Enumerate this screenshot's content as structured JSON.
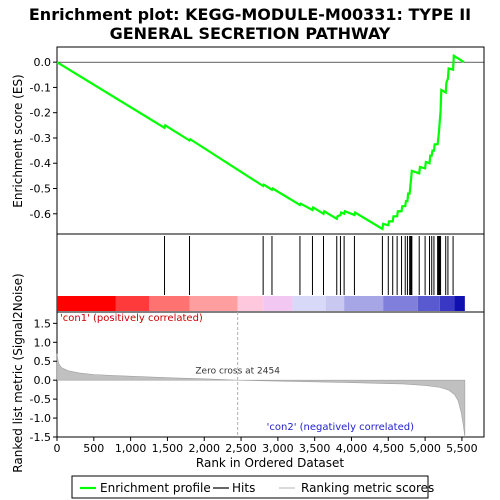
{
  "chart_data": {
    "type": "line",
    "title_line1": "Enrichment plot: KEGG-MODULE-M00331: TYPE II",
    "title_line2": "GENERAL SECRETION PATHWAY",
    "es_panel": {
      "ylabel": "Enrichment score (ES)",
      "ylim": [
        -0.68,
        0.06
      ],
      "yticks": [
        "0.0",
        "-0.1",
        "-0.2",
        "-0.3",
        "-0.4",
        "-0.5",
        "-0.6"
      ],
      "ytick_values": [
        0.0,
        -0.1,
        -0.2,
        -0.3,
        -0.4,
        -0.5,
        -0.6
      ],
      "line_color": "#00ff00",
      "es_curve": [
        [
          0,
          0.0
        ],
        [
          1460,
          -0.26
        ],
        [
          1470,
          -0.25
        ],
        [
          1800,
          -0.31
        ],
        [
          1810,
          -0.305
        ],
        [
          2800,
          -0.49
        ],
        [
          2810,
          -0.485
        ],
        [
          2920,
          -0.505
        ],
        [
          2930,
          -0.5
        ],
        [
          3300,
          -0.565
        ],
        [
          3310,
          -0.56
        ],
        [
          3470,
          -0.585
        ],
        [
          3480,
          -0.575
        ],
        [
          3620,
          -0.6
        ],
        [
          3630,
          -0.59
        ],
        [
          3800,
          -0.62
        ],
        [
          3810,
          -0.61
        ],
        [
          3850,
          -0.605
        ],
        [
          3860,
          -0.595
        ],
        [
          3900,
          -0.6
        ],
        [
          3910,
          -0.59
        ],
        [
          4040,
          -0.605
        ],
        [
          4050,
          -0.595
        ],
        [
          4420,
          -0.66
        ],
        [
          4430,
          -0.64
        ],
        [
          4500,
          -0.645
        ],
        [
          4510,
          -0.63
        ],
        [
          4560,
          -0.63
        ],
        [
          4570,
          -0.61
        ],
        [
          4620,
          -0.61
        ],
        [
          4630,
          -0.59
        ],
        [
          4680,
          -0.59
        ],
        [
          4690,
          -0.57
        ],
        [
          4730,
          -0.57
        ],
        [
          4740,
          -0.55
        ],
        [
          4760,
          -0.55
        ],
        [
          4770,
          -0.52
        ],
        [
          4790,
          -0.52
        ],
        [
          4800,
          -0.49
        ],
        [
          4810,
          -0.46
        ],
        [
          4820,
          -0.43
        ],
        [
          4920,
          -0.44
        ],
        [
          4930,
          -0.415
        ],
        [
          5000,
          -0.42
        ],
        [
          5010,
          -0.395
        ],
        [
          5060,
          -0.4
        ],
        [
          5070,
          -0.37
        ],
        [
          5090,
          -0.37
        ],
        [
          5100,
          -0.35
        ],
        [
          5120,
          -0.35
        ],
        [
          5130,
          -0.325
        ],
        [
          5170,
          -0.325
        ],
        [
          5180,
          -0.3
        ],
        [
          5190,
          -0.27
        ],
        [
          5200,
          -0.23
        ],
        [
          5210,
          -0.195
        ],
        [
          5220,
          -0.11
        ],
        [
          5280,
          -0.12
        ],
        [
          5290,
          -0.08
        ],
        [
          5310,
          -0.065
        ],
        [
          5320,
          -0.025
        ],
        [
          5380,
          -0.03
        ],
        [
          5390,
          0.025
        ],
        [
          5530,
          0.0
        ]
      ]
    },
    "hits_panel": {
      "hit_ranks": [
        1460,
        1800,
        2800,
        2920,
        3300,
        3470,
        3620,
        3800,
        3850,
        3900,
        4040,
        4420,
        4500,
        4560,
        4620,
        4680,
        4730,
        4760,
        4790,
        4800,
        4810,
        4820,
        4920,
        5000,
        5060,
        5090,
        5120,
        5170,
        5180,
        5190,
        5200,
        5210,
        5280,
        5310,
        5380
      ],
      "gradient_colors": [
        "#ff0000",
        "#ff3a3a",
        "#ff7272",
        "#ff9e9e",
        "#ffc8dc",
        "#f2c8f2",
        "#d8d8f8",
        "#c8c8f0",
        "#a6a6e6",
        "#8080dc",
        "#5a5ad0",
        "#3838c4",
        "#1010b0"
      ]
    },
    "metric_panel": {
      "ylabel": "Ranked list metric (Signal2Noise)",
      "xlabel": "Rank in Ordered Dataset",
      "ylim": [
        -1.5,
        1.8
      ],
      "yticks": [
        "1.5",
        "1.0",
        "0.5",
        "0.0",
        "-0.5",
        "-1.0",
        "-1.5"
      ],
      "ytick_values": [
        1.5,
        1.0,
        0.5,
        0.0,
        -0.5,
        -1.0,
        -1.5
      ],
      "xlim": [
        0,
        5800
      ],
      "xticks": [
        "0",
        "500",
        "1,000",
        "1,500",
        "2,000",
        "2,500",
        "3,000",
        "3,500",
        "4,000",
        "4,500",
        "5,000",
        "5,500"
      ],
      "xtick_values": [
        0,
        500,
        1000,
        1500,
        2000,
        2500,
        3000,
        3500,
        4000,
        4500,
        5000,
        5500
      ],
      "zero_cross": 2454,
      "zero_cross_label": "Zero cross at 2454",
      "pos_label": "'con1' (positively correlated)",
      "neg_label": "'con2' (negatively correlated)",
      "n_genes": 5540,
      "metric_curve": [
        [
          0,
          0.7
        ],
        [
          20,
          0.45
        ],
        [
          60,
          0.33
        ],
        [
          150,
          0.25
        ],
        [
          300,
          0.19
        ],
        [
          500,
          0.15
        ],
        [
          800,
          0.12
        ],
        [
          1200,
          0.09
        ],
        [
          1600,
          0.06
        ],
        [
          2000,
          0.035
        ],
        [
          2454,
          0.0
        ],
        [
          2900,
          -0.02
        ],
        [
          3400,
          -0.04
        ],
        [
          3900,
          -0.06
        ],
        [
          4300,
          -0.08
        ],
        [
          4700,
          -0.1
        ],
        [
          5000,
          -0.14
        ],
        [
          5200,
          -0.19
        ],
        [
          5320,
          -0.26
        ],
        [
          5400,
          -0.38
        ],
        [
          5450,
          -0.55
        ],
        [
          5490,
          -0.85
        ],
        [
          5520,
          -1.2
        ],
        [
          5540,
          -1.5
        ]
      ]
    },
    "legend": {
      "entries": [
        "Enrichment profile",
        "Hits",
        "Ranking metric scores"
      ],
      "colors": [
        "#00ff00",
        "#000000",
        "#c0c0c0"
      ]
    }
  }
}
